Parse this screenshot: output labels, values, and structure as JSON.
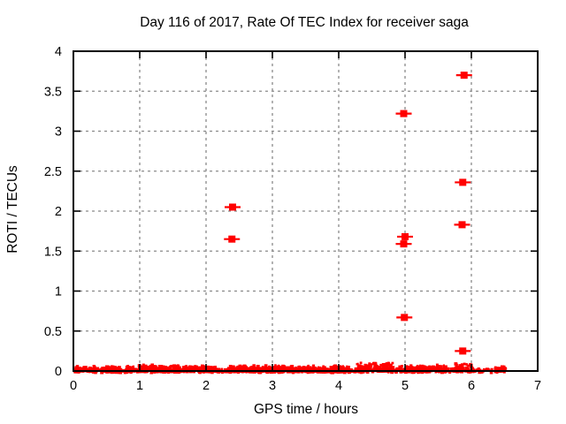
{
  "window": {
    "background_color": "#ffffff"
  },
  "chart_data": {
    "type": "scatter",
    "title": "Day 116 of 2017, Rate Of TEC Index for receiver saga",
    "xlabel": "GPS time / hours",
    "ylabel": "ROTI / TECUs",
    "xlim": [
      0,
      7
    ],
    "ylim": [
      0,
      4
    ],
    "xticks": [
      0,
      1,
      2,
      3,
      4,
      5,
      6,
      7
    ],
    "yticks": [
      0,
      0.5,
      1,
      1.5,
      2,
      2.5,
      3,
      3.5,
      4
    ],
    "grid": true,
    "grid_style": "dashed",
    "grid_color": "#8a8a8a",
    "legend_position": "none",
    "marker_color": "#ff0000",
    "marker_style": "filled-square-with-horizontal-whisker",
    "outlier_points": [
      {
        "x": 2.4,
        "y": 2.05
      },
      {
        "x": 2.39,
        "y": 1.65
      },
      {
        "x": 4.98,
        "y": 3.22
      },
      {
        "x": 5.0,
        "y": 1.68
      },
      {
        "x": 4.98,
        "y": 1.59
      },
      {
        "x": 4.99,
        "y": 0.67
      },
      {
        "x": 5.89,
        "y": 3.7
      },
      {
        "x": 5.87,
        "y": 2.36
      },
      {
        "x": 5.86,
        "y": 1.83
      },
      {
        "x": 5.87,
        "y": 0.25
      }
    ],
    "noise_band_description": "Dense band of ROTI values hugging 0 (roughly 0 to 0.1 TECUs) from 0 h to about 6.5 h, with small gaps near 0.37, 0.74, 2.27, 4.2, 4.87, 5.7 and 6.1-6.3 h, and slightly taller bumps near 4.3-4.8 h and 5.8-6.0 h",
    "noise_band": {
      "seed": 116,
      "points_per_hour": 330,
      "segments": [
        {
          "x0": 0.02,
          "x1": 0.33,
          "amp": 0.05,
          "density": 1.0
        },
        {
          "x0": 0.33,
          "x1": 0.42,
          "amp": 0.025,
          "density": 0.35
        },
        {
          "x0": 0.42,
          "x1": 0.7,
          "amp": 0.05,
          "density": 1.0
        },
        {
          "x0": 0.7,
          "x1": 0.78,
          "amp": 0.02,
          "density": 0.3
        },
        {
          "x0": 0.78,
          "x1": 1.55,
          "amp": 0.065,
          "density": 1.0
        },
        {
          "x0": 1.55,
          "x1": 2.18,
          "amp": 0.06,
          "density": 1.0
        },
        {
          "x0": 2.18,
          "x1": 2.36,
          "amp": 0.03,
          "density": 0.4
        },
        {
          "x0": 2.36,
          "x1": 3.2,
          "amp": 0.06,
          "density": 1.0
        },
        {
          "x0": 3.2,
          "x1": 3.62,
          "amp": 0.055,
          "density": 1.0
        },
        {
          "x0": 3.62,
          "x1": 4.15,
          "amp": 0.055,
          "density": 1.0
        },
        {
          "x0": 4.15,
          "x1": 4.26,
          "amp": 0.02,
          "density": 0.25
        },
        {
          "x0": 4.26,
          "x1": 4.82,
          "amp": 0.095,
          "density": 1.1
        },
        {
          "x0": 4.82,
          "x1": 4.92,
          "amp": 0.03,
          "density": 0.3
        },
        {
          "x0": 4.92,
          "x1": 5.65,
          "amp": 0.065,
          "density": 1.0
        },
        {
          "x0": 5.65,
          "x1": 5.76,
          "amp": 0.03,
          "density": 0.35
        },
        {
          "x0": 5.76,
          "x1": 6.04,
          "amp": 0.085,
          "density": 0.9
        },
        {
          "x0": 6.04,
          "x1": 6.18,
          "amp": 0.035,
          "density": 0.25
        },
        {
          "x0": 6.18,
          "x1": 6.32,
          "amp": 0.03,
          "density": 0.3
        },
        {
          "x0": 6.35,
          "x1": 6.52,
          "amp": 0.05,
          "density": 0.7
        }
      ]
    }
  }
}
